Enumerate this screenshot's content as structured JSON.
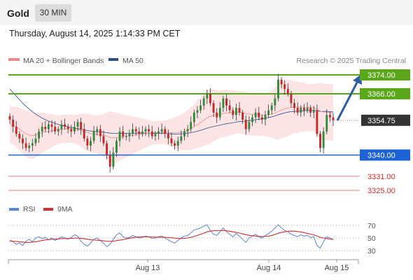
{
  "header": {
    "symbol": "Gold",
    "timeframe": "30 MIN",
    "datetime": "Thursday, August 14, 2025 1:14:33 PM CET"
  },
  "legend": {
    "ma20": "MA 20 + Bollinger Bands",
    "ma50": "MA 50",
    "rsi": "RSI",
    "rsi_ma": "9MA",
    "copyright": "Research © 2025 Trading Central"
  },
  "colors": {
    "up_candle": "#2e8b3e",
    "down_candle": "#c62828",
    "resistance": "#5aa81a",
    "support": "#1e63d6",
    "target": "#f08080",
    "target_text": "#d32f2f",
    "price_label": "#333333",
    "ma50": "#2c4f8c",
    "ma20": "#f28a8a",
    "bollinger": "#fde4e4",
    "rsi": "#5c85d6",
    "rsi_ma": "#d32f2f",
    "arrow": "#2a5ca8"
  },
  "chart_data": {
    "type": "candlestick",
    "x_ticks": [
      "Aug 13",
      "Aug 14",
      "Aug 15"
    ],
    "ylim": [
      3318,
      3380
    ],
    "levels": [
      {
        "name": "resistance-2",
        "value": 3374.0,
        "label": "3374.00",
        "style": "resistance"
      },
      {
        "name": "resistance-1",
        "value": 3366.0,
        "label": "3366.00",
        "style": "resistance"
      },
      {
        "name": "current-price",
        "value": 3354.75,
        "label": "3354.75",
        "style": "price"
      },
      {
        "name": "pivot",
        "value": 3340.0,
        "label": "3340.00",
        "style": "support"
      },
      {
        "name": "support-1",
        "value": 3331.0,
        "label": "3331.00",
        "style": "target"
      },
      {
        "name": "support-2",
        "value": 3325.0,
        "label": "3325.00",
        "style": "target"
      }
    ],
    "closes": [
      3355,
      3352,
      3349,
      3347,
      3345,
      3343,
      3344,
      3345,
      3347,
      3350,
      3352,
      3351,
      3353,
      3352,
      3350,
      3351,
      3353,
      3352,
      3351,
      3350,
      3352,
      3354,
      3351,
      3347,
      3344,
      3346,
      3350,
      3351,
      3348,
      3345,
      3340,
      3335,
      3341,
      3346,
      3350,
      3348,
      3348,
      3349,
      3351,
      3350,
      3349,
      3350,
      3351,
      3350,
      3348,
      3349,
      3350,
      3351,
      3349,
      3347,
      3345,
      3344,
      3346,
      3348,
      3350,
      3351,
      3354,
      3358,
      3359,
      3361,
      3364,
      3366,
      3362,
      3358,
      3356,
      3360,
      3364,
      3361,
      3359,
      3357,
      3360,
      3358,
      3355,
      3351,
      3354,
      3356,
      3358,
      3356,
      3355,
      3357,
      3359,
      3361,
      3364,
      3372,
      3370,
      3368,
      3366,
      3362,
      3360,
      3358,
      3360,
      3359,
      3360,
      3358,
      3359,
      3349,
      3343,
      3350,
      3357,
      3356,
      3354.75
    ],
    "ma20": [
      3353,
      3352.5,
      3352,
      3351,
      3350,
      3349,
      3348.5,
      3348.3,
      3348.5,
      3349,
      3349.5,
      3349.8,
      3350,
      3350.3,
      3350.5,
      3350.8,
      3351,
      3351.1,
      3351.2,
      3351.2,
      3351,
      3350.8,
      3350.5,
      3350.1,
      3349.6,
      3349.2,
      3348.9,
      3348.8,
      3348.6,
      3348.4,
      3348,
      3347.5,
      3347.3,
      3347.4,
      3347.6,
      3347.8,
      3348,
      3348.2,
      3348.4,
      3348.6,
      3348.8,
      3349,
      3349.2,
      3349.3,
      3349.4,
      3349.5,
      3349.6,
      3349.7,
      3349.7,
      3349.6,
      3349.5,
      3349.4,
      3349.5,
      3349.7,
      3350,
      3350.5,
      3351.2,
      3352,
      3352.9,
      3353.8,
      3354.8,
      3355.8,
      3356.4,
      3356.8,
      3357,
      3357.3,
      3357.6,
      3357.8,
      3358,
      3358.1,
      3358.2,
      3358.2,
      3358,
      3357.6,
      3357.4,
      3357.3,
      3357.2,
      3357.1,
      3357,
      3357,
      3357.1,
      3357.4,
      3357.8,
      3358.5,
      3359.1,
      3359.6,
      3360,
      3360.2,
      3360.3,
      3360.3,
      3360.3,
      3360.3,
      3360.2,
      3360.1,
      3360,
      3359.4,
      3358.6,
      3358.3,
      3358.2,
      3358.1,
      3358
    ],
    "ma50": [
      3368,
      3366.5,
      3365,
      3363.5,
      3362,
      3360.7,
      3359.5,
      3358.4,
      3357.4,
      3356.5,
      3355.7,
      3355,
      3354.4,
      3353.9,
      3353.4,
      3353,
      3352.6,
      3352.3,
      3352,
      3351.7,
      3351.4,
      3351.2,
      3351,
      3350.7,
      3350.4,
      3350.2,
      3350,
      3349.9,
      3349.8,
      3349.7,
      3349.5,
      3349.3,
      3349.2,
      3349.2,
      3349.2,
      3349.2,
      3349.2,
      3349.2,
      3349.3,
      3349.3,
      3349.3,
      3349.3,
      3349.3,
      3349.3,
      3349.2,
      3349.2,
      3349.2,
      3349.2,
      3349.2,
      3349.1,
      3349,
      3348.9,
      3348.9,
      3349,
      3349.1,
      3349.3,
      3349.5,
      3349.8,
      3350.1,
      3350.5,
      3350.9,
      3351.4,
      3351.8,
      3352.1,
      3352.4,
      3352.7,
      3353,
      3353.3,
      3353.5,
      3353.7,
      3354,
      3354.2,
      3354.3,
      3354.4,
      3354.6,
      3354.8,
      3355,
      3355.2,
      3355.4,
      3355.6,
      3355.9,
      3356.2,
      3356.6,
      3357.1,
      3357.5,
      3357.9,
      3358.2,
      3358.4,
      3358.5,
      3358.6,
      3358.7,
      3358.8,
      3358.9,
      3358.9,
      3359,
      3358.8,
      3358.5,
      3358.5,
      3358.5,
      3358.4,
      3358.3
    ],
    "bb_width": [
      8,
      8,
      8.5,
      9,
      9.5,
      10,
      10,
      10,
      9.5,
      9,
      8.5,
      8,
      7.5,
      7,
      6.5,
      6,
      6,
      6,
      6,
      6,
      6,
      6.5,
      7,
      7.5,
      8,
      8,
      8,
      8,
      8.5,
      9,
      10,
      11,
      11,
      10.5,
      10,
      9.5,
      9,
      8.5,
      8,
      7.5,
      7,
      6.5,
      6,
      5.5,
      5,
      5,
      5,
      5,
      5,
      5.5,
      6,
      6.5,
      7,
      7.5,
      8,
      8.5,
      9,
      9.5,
      10,
      10.5,
      11,
      11.5,
      11.5,
      11,
      10.5,
      10,
      10,
      10,
      9.5,
      9.5,
      9,
      9,
      9,
      9,
      9,
      9,
      9,
      9,
      9,
      9,
      9.5,
      10,
      11,
      12,
      12,
      12,
      12,
      11.5,
      11,
      11,
      10.5,
      10.5,
      10,
      10,
      10,
      11,
      12,
      12,
      12,
      12,
      12
    ],
    "rsi": {
      "ticks": [
        30,
        50,
        70
      ],
      "ylim": [
        20,
        80
      ],
      "values": [
        47,
        44,
        40,
        42,
        38,
        45,
        48,
        44,
        50,
        52,
        49,
        51,
        47,
        50,
        46,
        49,
        52,
        50,
        48,
        51,
        55,
        53,
        45,
        40,
        37,
        42,
        48,
        50,
        46,
        42,
        36,
        40,
        48,
        55,
        58,
        52,
        50,
        51,
        54,
        52,
        50,
        51,
        53,
        52,
        49,
        50,
        52,
        53,
        50,
        47,
        44,
        42,
        46,
        50,
        53,
        54,
        58,
        63,
        64,
        66,
        69,
        71,
        62,
        56,
        54,
        60,
        66,
        60,
        56,
        52,
        57,
        53,
        48,
        43,
        50,
        53,
        56,
        52,
        50,
        54,
        57,
        61,
        66,
        71,
        66,
        62,
        60,
        56,
        54,
        52,
        55,
        53,
        54,
        51,
        52,
        38,
        34,
        44,
        52,
        50,
        48
      ],
      "ma": [
        45,
        45,
        44.5,
        44,
        43.5,
        43,
        43,
        43.5,
        44,
        45,
        46,
        47,
        47.5,
        48,
        48.2,
        48.5,
        49,
        49.2,
        49.3,
        49.5,
        49.8,
        50,
        49.5,
        48.8,
        48,
        47.3,
        46.8,
        46.5,
        46,
        45.5,
        45,
        44.8,
        45,
        45.8,
        46.6,
        47.5,
        48.5,
        49.5,
        50.5,
        51.3,
        51.8,
        52,
        52,
        51.8,
        51.6,
        51.4,
        51.3,
        51.2,
        51,
        50.7,
        50.3,
        49.8,
        49.4,
        49.3,
        49.5,
        50,
        51,
        52.5,
        54,
        55.8,
        57.8,
        59.8,
        61,
        61.5,
        61.6,
        61.8,
        62,
        61.5,
        60.8,
        59.8,
        58.8,
        57.8,
        56.6,
        55.2,
        54.2,
        53.5,
        53,
        52.6,
        52.3,
        52.5,
        53,
        54,
        55.6,
        57.6,
        58.8,
        59.8,
        60.6,
        61,
        60.8,
        60.2,
        59.5,
        58.5,
        57.3,
        56,
        55,
        53.2,
        51,
        50,
        49.2,
        48.2,
        47.5
      ]
    }
  }
}
